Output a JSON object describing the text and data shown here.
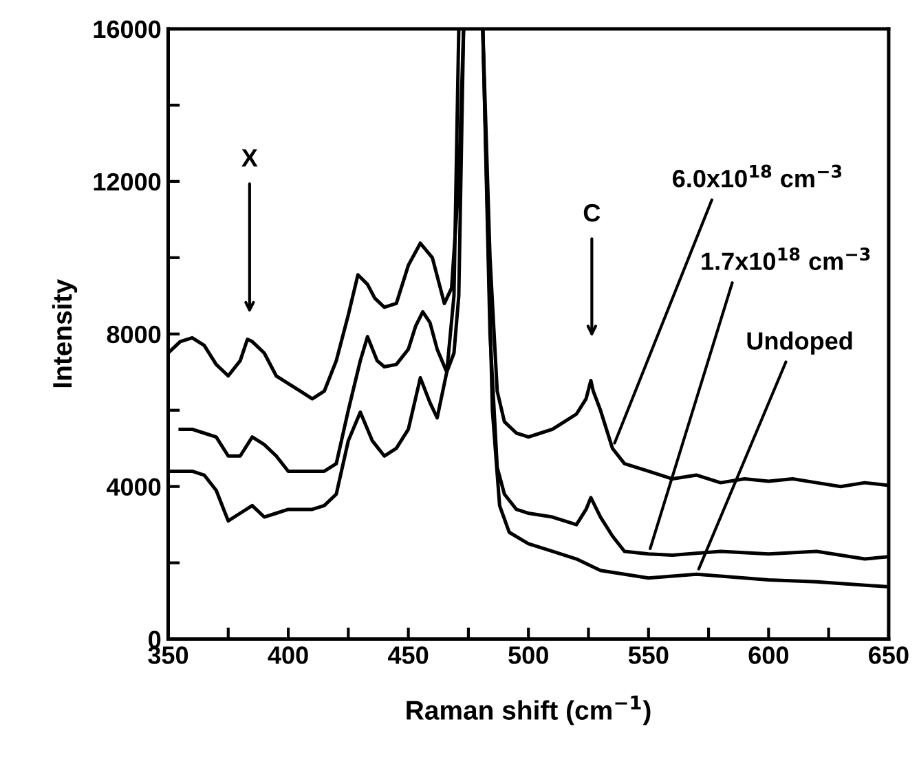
{
  "chart_data": {
    "type": "line",
    "xlabel": "Raman shift (cm$^{−1}$)",
    "ylabel": "Intensity",
    "xlim": [
      350,
      650
    ],
    "ylim": [
      0,
      16000
    ],
    "xticks": [
      350,
      {
        "value": 375,
        "label": null
      },
      400,
      {
        "value": 425,
        "label": null
      },
      450,
      {
        "value": 475,
        "label": null
      },
      500,
      {
        "value": 525,
        "label": null
      },
      550,
      {
        "value": 575,
        "label": null
      },
      600,
      {
        "value": 625,
        "label": null
      },
      650
    ],
    "yticks": [
      0,
      {
        "value": 2000,
        "label": null
      },
      4000,
      {
        "value": 6000,
        "label": null
      },
      8000,
      {
        "value": 10000,
        "label": null
      },
      12000,
      {
        "value": 14000,
        "label": null
      },
      16000
    ],
    "grid": false,
    "legend": false,
    "marker": "none",
    "line_style": "solid",
    "series": [
      {
        "color": "#000000",
        "x": [
          350,
          355,
          360,
          365,
          370,
          375,
          380,
          383,
          385,
          390,
          395,
          400,
          405,
          410,
          415,
          420,
          425,
          429,
          433,
          436,
          440,
          445,
          450,
          455,
          460,
          465,
          468,
          471,
          473,
          477,
          481,
          484,
          487,
          490,
          495,
          500,
          505,
          510,
          515,
          520,
          524,
          526,
          527,
          530,
          535,
          540,
          550,
          560,
          570,
          580,
          590,
          600,
          610,
          620,
          630,
          640,
          650
        ],
        "values": [
          7500,
          7800,
          7900,
          7700,
          7200,
          6900,
          7300,
          7860,
          7800,
          7500,
          6900,
          6700,
          6500,
          6300,
          6500,
          7300,
          8500,
          9550,
          9300,
          8940,
          8700,
          8800,
          9800,
          10380,
          10000,
          8800,
          9200,
          12000,
          16000,
          null,
          16000,
          10000,
          6500,
          5700,
          5400,
          5300,
          5400,
          5500,
          5700,
          5900,
          6300,
          6780,
          6500,
          6000,
          5000,
          4600,
          4400,
          4200,
          4300,
          4100,
          4200,
          4140,
          4200,
          4100,
          4000,
          4100,
          4030
        ]
      },
      {
        "color": "#000000",
        "x": [
          355,
          360,
          365,
          370,
          375,
          380,
          385,
          390,
          395,
          400,
          405,
          410,
          415,
          420,
          425,
          430,
          433,
          437,
          440,
          445,
          450,
          453,
          456,
          459,
          462,
          466,
          469,
          471,
          473,
          477,
          481,
          484,
          487,
          490,
          495,
          500,
          510,
          520,
          524,
          526,
          530,
          535,
          540,
          550,
          560,
          580,
          600,
          620,
          640,
          650
        ],
        "values": [
          5500,
          5500,
          5400,
          5300,
          4800,
          4800,
          5300,
          5100,
          4800,
          4400,
          4400,
          4400,
          4400,
          4600,
          6000,
          7300,
          7930,
          7300,
          7140,
          7200,
          7600,
          8200,
          8580,
          8300,
          7600,
          7000,
          7500,
          9000,
          16000,
          null,
          16000,
          8000,
          4500,
          3800,
          3400,
          3300,
          3200,
          3000,
          3400,
          3710,
          3200,
          2700,
          2300,
          2230,
          2200,
          2300,
          2230,
          2300,
          2100,
          2160
        ]
      },
      {
        "color": "#000000",
        "x": [
          350,
          360,
          365,
          370,
          375,
          380,
          385,
          390,
          395,
          400,
          410,
          415,
          420,
          425,
          430,
          435,
          440,
          445,
          450,
          455,
          459,
          462,
          466,
          469,
          471,
          473,
          477,
          481,
          485,
          488,
          492,
          500,
          510,
          520,
          530,
          540,
          550,
          570,
          590,
          600,
          620,
          650
        ],
        "values": [
          4400,
          4400,
          4300,
          3900,
          3100,
          3300,
          3500,
          3200,
          3300,
          3400,
          3400,
          3500,
          3800,
          5200,
          5950,
          5200,
          4800,
          5000,
          5500,
          6850,
          6200,
          5800,
          7000,
          9000,
          16000,
          null,
          null,
          16000,
          6000,
          3500,
          2800,
          2500,
          2300,
          2100,
          1800,
          1700,
          1600,
          1700,
          1600,
          1550,
          1500,
          1370
        ]
      }
    ],
    "annotations": [
      "X",
      "C",
      {
        "text": "6.0x10$^{18}$ cm$^{−3}$",
        "x": 535,
        "y": 5000
      },
      {
        "text": "1.7x10$^{18}$ cm$^{−3}$",
        "x": 550,
        "y": 2230
      },
      {
        "text": "Undoped",
        "x": 570,
        "y": 1700
      }
    ]
  }
}
